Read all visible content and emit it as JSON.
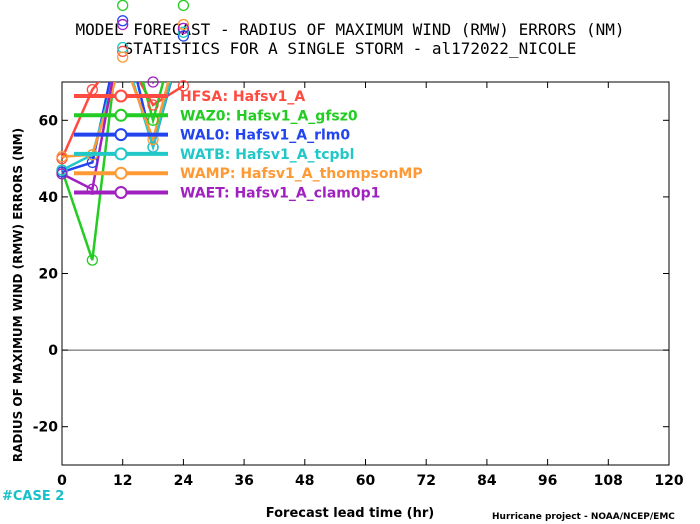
{
  "chart_data": {
    "type": "line",
    "title": "MODEL FORECAST - RADIUS OF MAXIMUM WIND (RMW) ERRORS (NM)",
    "subtitle": "STATISTICS FOR A SINGLE STORM - al172022_NICOLE",
    "xlabel": "Forecast lead time (hr)",
    "ylabel": "RADIUS OF MAXIMUM WIND (RMW) ERRORS (NM)",
    "xlim": [
      0,
      120
    ],
    "ylim": [
      -30,
      70
    ],
    "xticks": [
      0,
      12,
      24,
      36,
      48,
      60,
      72,
      84,
      96,
      108,
      120
    ],
    "yticks": [
      -20,
      0,
      20,
      40,
      60
    ],
    "x_tick_labels": [
      "0",
      "12",
      "24",
      "36",
      "48",
      "60",
      "72",
      "84",
      "96",
      "108",
      "120"
    ],
    "y_tick_labels": [
      "-20",
      "0",
      "20",
      "40",
      "60"
    ],
    "zero_line": true,
    "grid": false,
    "legend_position": "top-left",
    "series": [
      {
        "name": "HFSA: Hafsv1_A",
        "color": "#ff4a40",
        "x": [
          0,
          6,
          12,
          18,
          24
        ],
        "y": [
          50,
          68,
          78,
          64,
          69
        ]
      },
      {
        "name": "WAZ0: Hafsv1_A_gfsz0",
        "color": "#22cc22",
        "x": [
          0,
          6,
          12,
          18,
          24
        ],
        "y": [
          47,
          23.5,
          90,
          60,
          90
        ]
      },
      {
        "name": "WAL0: Hafsv1_A_rlm0",
        "color": "#2244ee",
        "x": [
          0,
          6,
          12,
          18,
          24
        ],
        "y": [
          46.5,
          49,
          86,
          53,
          82
        ]
      },
      {
        "name": "WATB: Hafsv1_A_tcpbl",
        "color": "#22c8c8",
        "x": [
          0,
          6,
          12,
          18,
          24
        ],
        "y": [
          47,
          51,
          79,
          53,
          83
        ]
      },
      {
        "name": "WAMP: Hafsv1_A_thompsonMP",
        "color": "#ff9933",
        "x": [
          0,
          6,
          12,
          18,
          24
        ],
        "y": [
          50.5,
          51,
          76.5,
          55,
          85
        ]
      },
      {
        "name": "WAET: Hafsv1_A_clam0p1",
        "color": "#a020c0",
        "x": [
          0,
          6,
          12,
          18,
          24
        ],
        "y": [
          46,
          42,
          85,
          70,
          84
        ]
      }
    ]
  },
  "footer": {
    "case_label": "#CASE 2",
    "credit": "Hurricane project - NOAA/NCEP/EMC"
  }
}
